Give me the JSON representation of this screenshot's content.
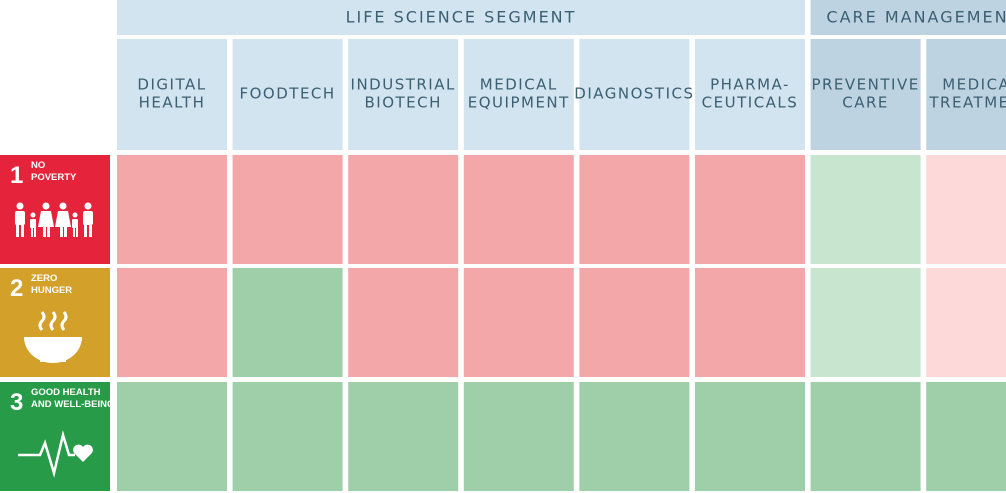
{
  "segments": [
    {
      "label": "LIFE SCIENCE SEGMENT",
      "span": 6,
      "color": "#d2e4ef"
    },
    {
      "label": "CARE MANAGEMENT",
      "span": 2,
      "color": "#bed3e1"
    }
  ],
  "columns": [
    {
      "lines": [
        "DIGITAL",
        "HEALTH"
      ],
      "color": "#d2e4ef"
    },
    {
      "lines": [
        "FOODTECH"
      ],
      "color": "#d2e4ef"
    },
    {
      "lines": [
        "INDUSTRIAL",
        "BIOTECH"
      ],
      "color": "#d2e4ef"
    },
    {
      "lines": [
        "MEDICAL",
        "EQUIPMENT"
      ],
      "color": "#d2e4ef"
    },
    {
      "lines": [
        "DIAGNOSTICS"
      ],
      "color": "#d2e4ef"
    },
    {
      "lines": [
        "PHARMA-",
        "CEUTICALS"
      ],
      "color": "#d2e4ef"
    },
    {
      "lines": [
        "PREVENTIVE",
        "CARE"
      ],
      "color": "#bed3e1"
    },
    {
      "lines": [
        "MEDICAL",
        "TREATMENT"
      ],
      "color": "#bed3e1"
    }
  ],
  "rows": [
    {
      "number": "1",
      "lines": [
        "NO",
        "POVERTY"
      ],
      "color": "#e5243b",
      "cells": [
        "#f4a7a8",
        "#f4a7a8",
        "#f4a7a8",
        "#f4a7a8",
        "#f4a7a8",
        "#f4a7a8",
        "#c8e5d0",
        "#fdd9da"
      ]
    },
    {
      "number": "2",
      "lines": [
        "ZERO",
        "HUNGER"
      ],
      "color": "#d3a029",
      "cells": [
        "#f4a7a8",
        "#9fcfa8",
        "#f4a7a8",
        "#f4a7a8",
        "#f4a7a8",
        "#f4a7a8",
        "#c8e5d0",
        "#fdd9da"
      ]
    },
    {
      "number": "3",
      "lines": [
        "GOOD HEALTH",
        "AND WELL-BEING"
      ],
      "color": "#279b48",
      "cells": [
        "#9fcfa8",
        "#9fcfa8",
        "#9fcfa8",
        "#9fcfa8",
        "#9fcfa8",
        "#9fcfa8",
        "#9fcfa8",
        "#9fcfa8"
      ]
    }
  ]
}
